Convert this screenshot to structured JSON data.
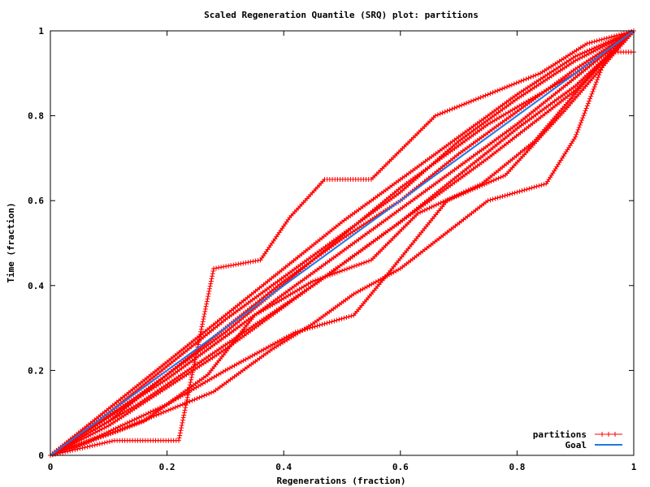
{
  "chart_data": {
    "type": "line",
    "title": "Scaled Regeneration Quantile (SRQ) plot: partitions",
    "xlabel": "Regenerations (fraction)",
    "ylabel": "Time (fraction)",
    "xlim": [
      0,
      1
    ],
    "ylim": [
      0,
      1
    ],
    "xticks": [
      "0",
      "0.2",
      "0.4",
      "0.6",
      "0.8",
      "1"
    ],
    "yticks": [
      "0",
      "0.2",
      "0.4",
      "0.6",
      "0.8",
      "1"
    ],
    "grid": false,
    "legend_position": "bottom-right",
    "series": [
      {
        "name": "partitions",
        "color": "#ff0000",
        "marker": "plus",
        "curves": [
          [
            [
              0,
              0
            ],
            [
              0.1,
              0.1
            ],
            [
              0.2,
              0.21
            ],
            [
              0.3,
              0.32
            ],
            [
              0.4,
              0.42
            ],
            [
              0.5,
              0.52
            ],
            [
              0.6,
              0.62
            ],
            [
              0.7,
              0.74
            ],
            [
              0.8,
              0.84
            ],
            [
              0.9,
              0.93
            ],
            [
              1,
              1
            ]
          ],
          [
            [
              0,
              0
            ],
            [
              0.1,
              0.09
            ],
            [
              0.2,
              0.18
            ],
            [
              0.3,
              0.28
            ],
            [
              0.4,
              0.38
            ],
            [
              0.5,
              0.48
            ],
            [
              0.6,
              0.58
            ],
            [
              0.7,
              0.68
            ],
            [
              0.8,
              0.78
            ],
            [
              0.9,
              0.89
            ],
            [
              1,
              1
            ]
          ],
          [
            [
              0,
              0
            ],
            [
              0.1,
              0.08
            ],
            [
              0.2,
              0.19
            ],
            [
              0.3,
              0.3
            ],
            [
              0.4,
              0.41
            ],
            [
              0.5,
              0.51
            ],
            [
              0.6,
              0.6
            ],
            [
              0.7,
              0.71
            ],
            [
              0.8,
              0.81
            ],
            [
              0.9,
              0.91
            ],
            [
              1,
              1
            ]
          ],
          [
            [
              0,
              0
            ],
            [
              0.1,
              0.11
            ],
            [
              0.2,
              0.22
            ],
            [
              0.3,
              0.33
            ],
            [
              0.4,
              0.44
            ],
            [
              0.5,
              0.55
            ],
            [
              0.6,
              0.65
            ],
            [
              0.7,
              0.75
            ],
            [
              0.8,
              0.85
            ],
            [
              0.9,
              0.94
            ],
            [
              1,
              1
            ]
          ],
          [
            [
              0,
              0
            ],
            [
              0.1,
              0.07
            ],
            [
              0.2,
              0.16
            ],
            [
              0.3,
              0.25
            ],
            [
              0.4,
              0.35
            ],
            [
              0.5,
              0.45
            ],
            [
              0.6,
              0.55
            ],
            [
              0.7,
              0.66
            ],
            [
              0.8,
              0.77
            ],
            [
              0.9,
              0.87
            ],
            [
              1,
              1
            ]
          ],
          [
            [
              0,
              0
            ],
            [
              0.15,
              0.14
            ],
            [
              0.3,
              0.29
            ],
            [
              0.45,
              0.46
            ],
            [
              0.6,
              0.63
            ],
            [
              0.75,
              0.78
            ],
            [
              0.9,
              0.9
            ],
            [
              1,
              1
            ]
          ],
          [
            [
              0,
              0
            ],
            [
              0.15,
              0.12
            ],
            [
              0.3,
              0.26
            ],
            [
              0.45,
              0.4
            ],
            [
              0.6,
              0.55
            ],
            [
              0.75,
              0.7
            ],
            [
              0.9,
              0.86
            ],
            [
              1,
              1
            ]
          ],
          [
            [
              0,
              0
            ],
            [
              0.11,
              0.035
            ],
            [
              0.22,
              0.035
            ],
            [
              0.28,
              0.44
            ],
            [
              0.36,
              0.46
            ],
            [
              0.41,
              0.56
            ],
            [
              0.47,
              0.65
            ],
            [
              0.55,
              0.65
            ],
            [
              0.66,
              0.8
            ],
            [
              0.84,
              0.9
            ],
            [
              0.92,
              0.97
            ],
            [
              1,
              1
            ]
          ],
          [
            [
              0,
              0
            ],
            [
              0.12,
              0.06
            ],
            [
              0.28,
              0.15
            ],
            [
              0.38,
              0.25
            ],
            [
              0.45,
              0.31
            ],
            [
              0.52,
              0.38
            ],
            [
              0.6,
              0.44
            ],
            [
              0.75,
              0.6
            ],
            [
              0.85,
              0.64
            ],
            [
              0.9,
              0.75
            ],
            [
              0.95,
              0.93
            ],
            [
              1,
              1
            ]
          ],
          [
            [
              0,
              0
            ],
            [
              0.16,
              0.08
            ],
            [
              0.27,
              0.19
            ],
            [
              0.35,
              0.33
            ],
            [
              0.45,
              0.41
            ],
            [
              0.55,
              0.46
            ],
            [
              0.63,
              0.57
            ],
            [
              0.74,
              0.64
            ],
            [
              0.83,
              0.74
            ],
            [
              0.96,
              0.95
            ],
            [
              1,
              0.95
            ]
          ],
          [
            [
              0,
              0
            ],
            [
              0.06,
              0.03
            ],
            [
              0.2,
              0.12
            ],
            [
              0.3,
              0.2
            ],
            [
              0.42,
              0.29
            ],
            [
              0.52,
              0.33
            ],
            [
              0.58,
              0.43
            ],
            [
              0.68,
              0.6
            ],
            [
              0.78,
              0.66
            ],
            [
              0.88,
              0.81
            ],
            [
              1,
              1
            ]
          ]
        ]
      },
      {
        "name": "Goal",
        "color": "#1f77e8",
        "points": [
          [
            0,
            0
          ],
          [
            1,
            1
          ]
        ]
      }
    ]
  }
}
